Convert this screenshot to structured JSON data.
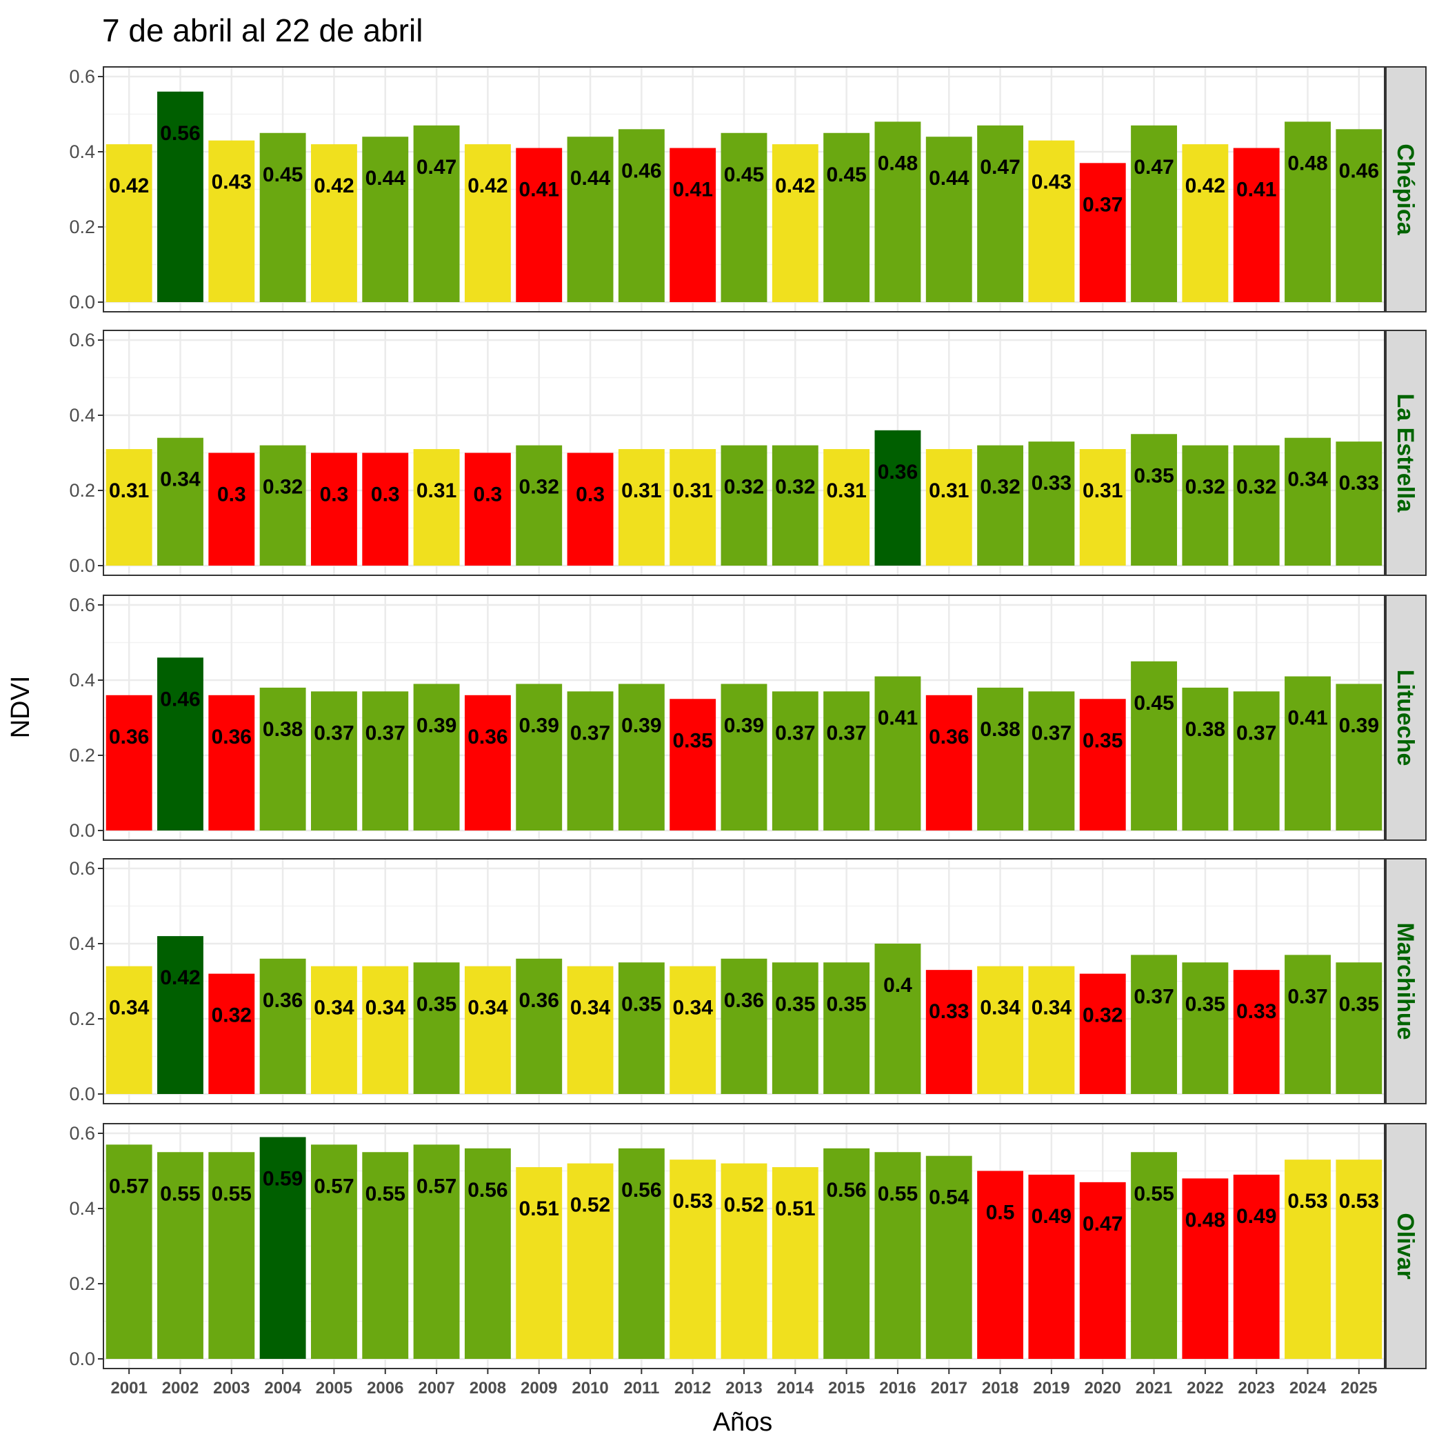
{
  "chart_data": {
    "type": "bar",
    "title": "7 de abril al 22 de abril",
    "xlabel": "Años",
    "ylabel": "NDVI",
    "ylim": [
      0,
      0.6
    ],
    "yticks": [
      "0.0",
      "0.2",
      "0.4",
      "0.6"
    ],
    "grid": true,
    "categories": [
      "2001",
      "2002",
      "2003",
      "2004",
      "2005",
      "2006",
      "2007",
      "2008",
      "2009",
      "2010",
      "2011",
      "2012",
      "2013",
      "2014",
      "2015",
      "2016",
      "2017",
      "2018",
      "2019",
      "2020",
      "2021",
      "2022",
      "2023",
      "2024",
      "2025"
    ],
    "colors": {
      "lowest": "#ff0000",
      "low": "#f0e01e",
      "mid": "#6aa811",
      "highest": "#005f00",
      "strip_bg": "#d9d9d9",
      "strip_text": "#006400"
    },
    "panels": [
      {
        "name": "Chépica",
        "values": [
          0.42,
          0.56,
          0.43,
          0.45,
          0.42,
          0.44,
          0.47,
          0.42,
          0.41,
          0.44,
          0.46,
          0.41,
          0.45,
          0.42,
          0.45,
          0.48,
          0.44,
          0.47,
          0.43,
          0.37,
          0.47,
          0.42,
          0.41,
          0.48,
          0.46
        ],
        "labels": [
          "0.42",
          "0.56",
          "0.43",
          "0.45",
          "0.42",
          "0.44",
          "0.47",
          "0.42",
          "0.41",
          "0.44",
          "0.46",
          "0.41",
          "0.45",
          "0.42",
          "0.45",
          "0.48",
          "0.44",
          "0.47",
          "0.43",
          "0.37",
          "0.47",
          "0.42",
          "0.41",
          "0.48",
          "0.46"
        ],
        "classes": [
          "low",
          "highest",
          "low",
          "mid",
          "low",
          "mid",
          "mid",
          "low",
          "lowest",
          "mid",
          "mid",
          "lowest",
          "mid",
          "low",
          "mid",
          "mid",
          "mid",
          "mid",
          "low",
          "lowest",
          "mid",
          "low",
          "lowest",
          "mid",
          "mid"
        ]
      },
      {
        "name": "La Estrella",
        "values": [
          0.31,
          0.34,
          0.3,
          0.32,
          0.3,
          0.3,
          0.31,
          0.3,
          0.32,
          0.3,
          0.31,
          0.31,
          0.32,
          0.32,
          0.31,
          0.36,
          0.31,
          0.32,
          0.33,
          0.31,
          0.35,
          0.32,
          0.32,
          0.34,
          0.33
        ],
        "labels": [
          "0.31",
          "0.34",
          "0.3",
          "0.32",
          "0.3",
          "0.3",
          "0.31",
          "0.3",
          "0.32",
          "0.3",
          "0.31",
          "0.31",
          "0.32",
          "0.32",
          "0.31",
          "0.36",
          "0.31",
          "0.32",
          "0.33",
          "0.31",
          "0.35",
          "0.32",
          "0.32",
          "0.34",
          "0.33"
        ],
        "classes": [
          "low",
          "mid",
          "lowest",
          "mid",
          "lowest",
          "lowest",
          "low",
          "lowest",
          "mid",
          "lowest",
          "low",
          "low",
          "mid",
          "mid",
          "low",
          "highest",
          "low",
          "mid",
          "mid",
          "low",
          "mid",
          "mid",
          "mid",
          "mid",
          "mid"
        ]
      },
      {
        "name": "Litueche",
        "values": [
          0.36,
          0.46,
          0.36,
          0.38,
          0.37,
          0.37,
          0.39,
          0.36,
          0.39,
          0.37,
          0.39,
          0.35,
          0.39,
          0.37,
          0.37,
          0.41,
          0.36,
          0.38,
          0.37,
          0.35,
          0.45,
          0.38,
          0.37,
          0.41,
          0.39
        ],
        "labels": [
          "0.36",
          "0.46",
          "0.36",
          "0.38",
          "0.37",
          "0.37",
          "0.39",
          "0.36",
          "0.39",
          "0.37",
          "0.39",
          "0.35",
          "0.39",
          "0.37",
          "0.37",
          "0.41",
          "0.36",
          "0.38",
          "0.37",
          "0.35",
          "0.45",
          "0.38",
          "0.37",
          "0.41",
          "0.39"
        ],
        "classes": [
          "lowest",
          "highest",
          "lowest",
          "mid",
          "mid",
          "mid",
          "mid",
          "lowest",
          "mid",
          "mid",
          "mid",
          "lowest",
          "mid",
          "mid",
          "mid",
          "mid",
          "lowest",
          "mid",
          "mid",
          "lowest",
          "mid",
          "mid",
          "mid",
          "mid",
          "mid"
        ]
      },
      {
        "name": "Marchihue",
        "values": [
          0.34,
          0.42,
          0.32,
          0.36,
          0.34,
          0.34,
          0.35,
          0.34,
          0.36,
          0.34,
          0.35,
          0.34,
          0.36,
          0.35,
          0.35,
          0.4,
          0.33,
          0.34,
          0.34,
          0.32,
          0.37,
          0.35,
          0.33,
          0.37,
          0.35
        ],
        "labels": [
          "0.34",
          "0.42",
          "0.32",
          "0.36",
          "0.34",
          "0.34",
          "0.35",
          "0.34",
          "0.36",
          "0.34",
          "0.35",
          "0.34",
          "0.36",
          "0.35",
          "0.35",
          "0.4",
          "0.33",
          "0.34",
          "0.34",
          "0.32",
          "0.37",
          "0.35",
          "0.33",
          "0.37",
          "0.35"
        ],
        "classes": [
          "low",
          "highest",
          "lowest",
          "mid",
          "low",
          "low",
          "mid",
          "low",
          "mid",
          "low",
          "mid",
          "low",
          "mid",
          "mid",
          "mid",
          "mid",
          "lowest",
          "low",
          "low",
          "lowest",
          "mid",
          "mid",
          "lowest",
          "mid",
          "mid"
        ]
      },
      {
        "name": "Olivar",
        "values": [
          0.57,
          0.55,
          0.55,
          0.59,
          0.57,
          0.55,
          0.57,
          0.56,
          0.51,
          0.52,
          0.56,
          0.53,
          0.52,
          0.51,
          0.56,
          0.55,
          0.54,
          0.5,
          0.49,
          0.47,
          0.55,
          0.48,
          0.49,
          0.53,
          0.53
        ],
        "labels": [
          "0.57",
          "0.55",
          "0.55",
          "0.59",
          "0.57",
          "0.55",
          "0.57",
          "0.56",
          "0.51",
          "0.52",
          "0.56",
          "0.53",
          "0.52",
          "0.51",
          "0.56",
          "0.55",
          "0.54",
          "0.5",
          "0.49",
          "0.47",
          "0.55",
          "0.48",
          "0.49",
          "0.53",
          "0.53"
        ],
        "classes": [
          "mid",
          "mid",
          "mid",
          "highest",
          "mid",
          "mid",
          "mid",
          "mid",
          "low",
          "low",
          "mid",
          "low",
          "low",
          "low",
          "mid",
          "mid",
          "mid",
          "lowest",
          "lowest",
          "lowest",
          "mid",
          "lowest",
          "lowest",
          "low",
          "low"
        ]
      }
    ]
  }
}
